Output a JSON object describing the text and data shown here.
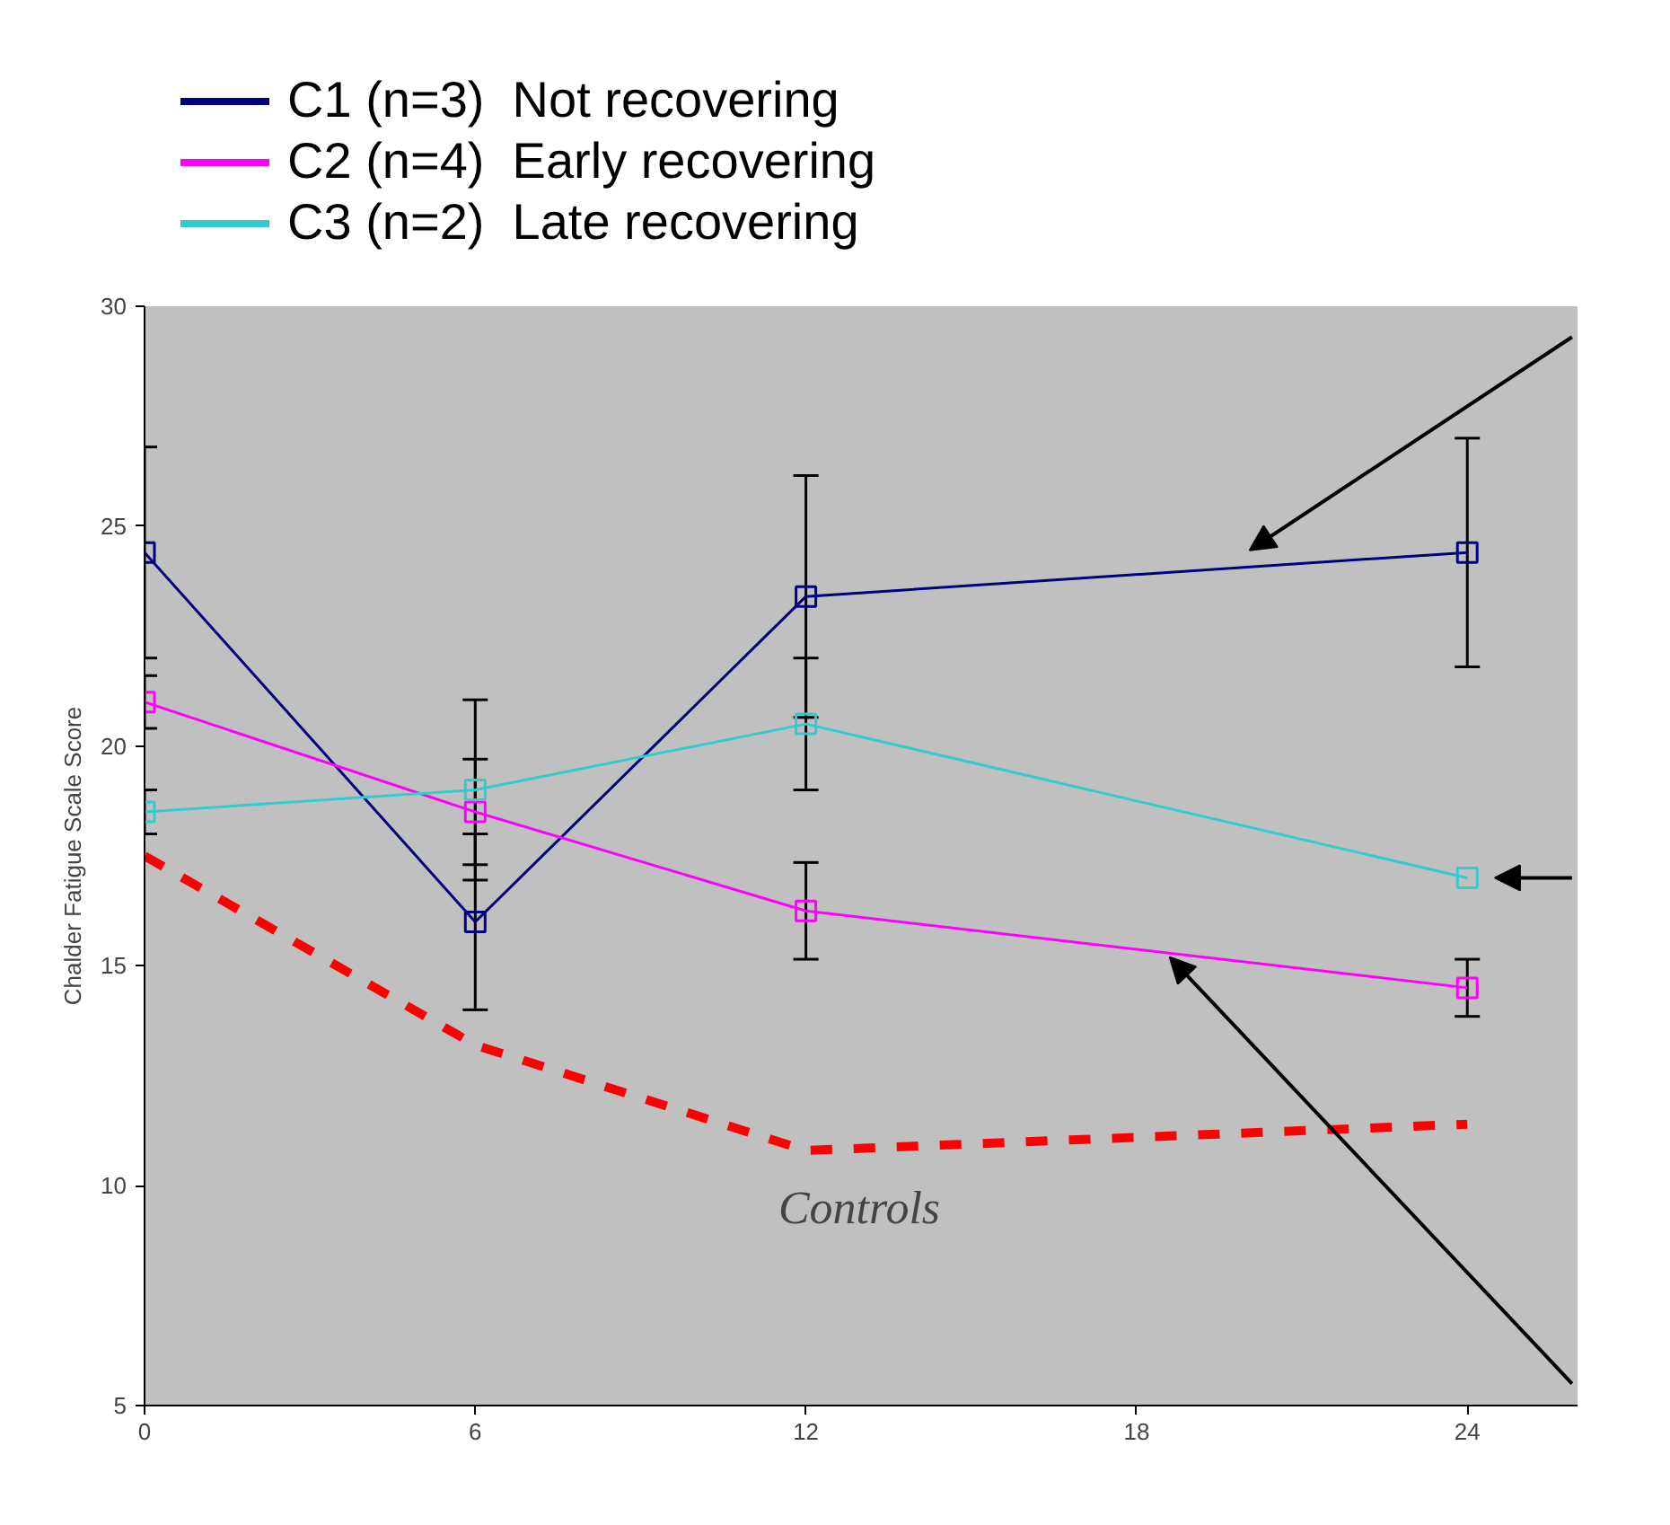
{
  "chart_data": {
    "type": "line",
    "ylabel": "Chalder Fatigue Scale Score",
    "x": [
      0,
      6,
      12,
      24
    ],
    "xlim": [
      0,
      26
    ],
    "xticks": [
      0,
      6,
      12,
      18,
      24
    ],
    "ylim": [
      5,
      30
    ],
    "yticks": [
      5,
      10,
      15,
      20,
      25,
      30
    ],
    "grid": false,
    "legend": "top left",
    "marker": "square",
    "line_style": "solid",
    "series": [
      {
        "name": "C1 (n=3)  Not recovering",
        "color": "#000080",
        "values": [
          24.4,
          16.0,
          23.4,
          24.4
        ],
        "errors": [
          2.4,
          2.0,
          2.75,
          2.6
        ]
      },
      {
        "name": "C2 (n=4)  Early recovering",
        "color": "#ff00ff",
        "values": [
          21.0,
          18.5,
          16.25,
          14.5
        ],
        "errors": [
          0.6,
          1.2,
          1.1,
          0.65
        ]
      },
      {
        "name": "C3 (n=2)  Late recovering",
        "color": "#33cccc",
        "values": [
          18.5,
          19.0,
          20.5,
          17.0
        ],
        "errors": [
          0.5,
          2.05,
          1.5,
          null
        ]
      },
      {
        "color": "#ff0000",
        "values": [
          17.5,
          13.2,
          10.8,
          11.4
        ],
        "marker": "none",
        "line_style": "dashed"
      }
    ],
    "annotations": [
      "Controls"
    ]
  }
}
